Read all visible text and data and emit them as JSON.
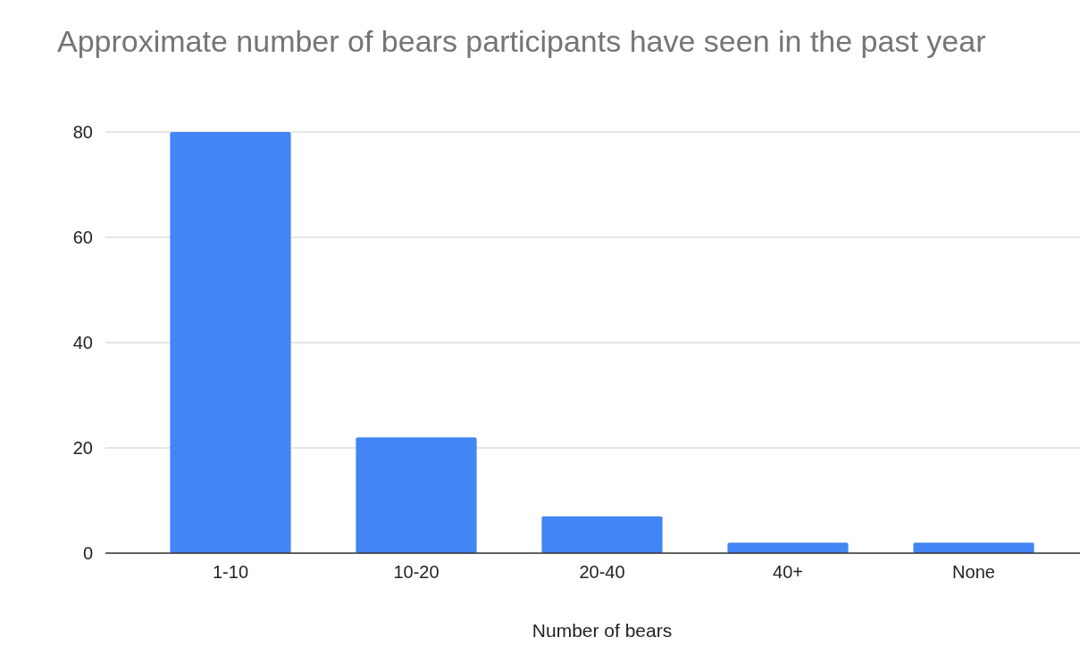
{
  "chart_data": {
    "type": "bar",
    "title": "Approximate number of bears participants have seen in the past year",
    "xlabel": "Number of bears",
    "categories": [
      "1-10",
      "10-20",
      "20-40",
      "40+",
      "None"
    ],
    "values": [
      80,
      22,
      7,
      2,
      2
    ],
    "color": "#4285f4",
    "ylim": [
      0,
      80
    ],
    "yticks": [
      0,
      20,
      40,
      60,
      80
    ],
    "grid": "y"
  }
}
